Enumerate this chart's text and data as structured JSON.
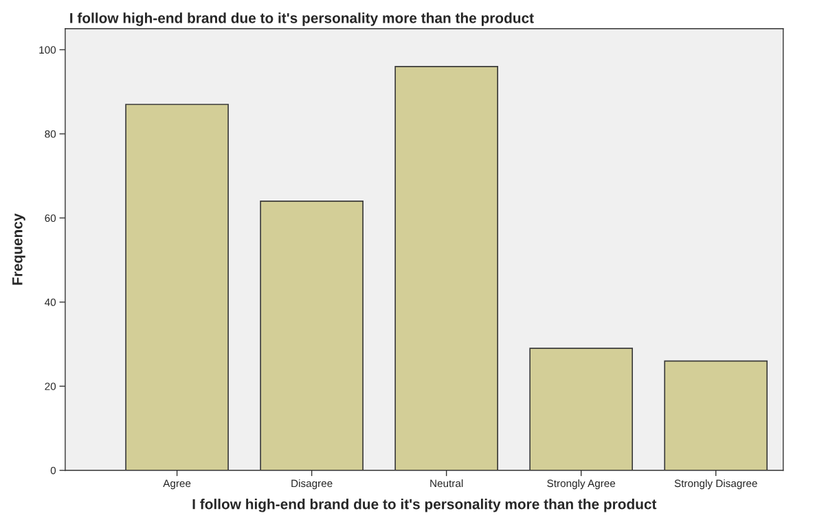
{
  "chart_data": {
    "type": "bar",
    "title": "I follow high-end brand due to it's personality more than the product",
    "xlabel": "I follow high-end brand due to it's personality more than the product",
    "ylabel": "Frequency",
    "categories": [
      "Agree",
      "Disagree",
      "Neutral",
      "Strongly Agree",
      "Strongly Disagree"
    ],
    "values": [
      87,
      64,
      96,
      29,
      26
    ],
    "color": "#d3ce97",
    "ylim": [
      0,
      105
    ],
    "yticks": [
      0,
      20,
      40,
      60,
      80,
      100
    ],
    "grid": false
  }
}
